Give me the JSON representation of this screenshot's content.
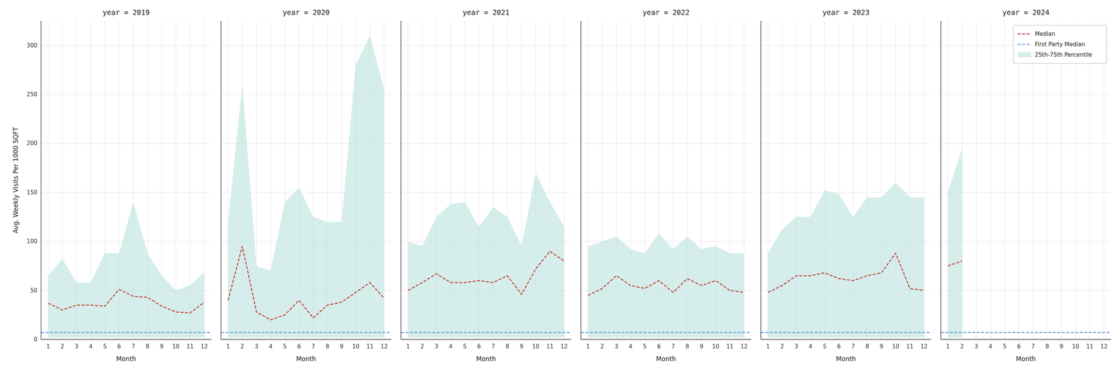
{
  "chart_data": [
    {
      "type": "line",
      "title": "year = 2019",
      "xlabel": "Month",
      "ylabel": "Avg. Weekly Visits Per 1000 SQFT",
      "x": [
        1,
        2,
        3,
        4,
        5,
        6,
        7,
        8,
        9,
        10,
        11,
        12
      ],
      "xlim": [
        0.5,
        12.5
      ],
      "xticks": [
        1,
        2,
        3,
        4,
        5,
        6,
        7,
        8,
        9,
        10,
        11,
        12
      ],
      "ylim": [
        0,
        325
      ],
      "yticks": [
        0,
        50,
        100,
        150,
        200,
        250,
        300
      ],
      "grid": true,
      "series": [
        {
          "name": "Median",
          "type": "line",
          "color": "#c0392b",
          "line_style": "dashed",
          "values": [
            37,
            30,
            35,
            35,
            34,
            51,
            44,
            43,
            34,
            28,
            27,
            38
          ]
        },
        {
          "name": "First Party Median",
          "type": "hline",
          "color": "#5b9bd5",
          "line_style": "dashed",
          "value": 7
        },
        {
          "name": "25th-75th Percentile",
          "type": "band",
          "color": "#b2dfdb",
          "lower": [
            2,
            2,
            2,
            2,
            2,
            2,
            2,
            2,
            2,
            2,
            2,
            2
          ],
          "upper": [
            65,
            82,
            58,
            58,
            88,
            88,
            140,
            88,
            65,
            50,
            55,
            68
          ]
        }
      ]
    },
    {
      "type": "line",
      "title": "year = 2020",
      "xlabel": "Month",
      "x": [
        1,
        2,
        3,
        4,
        5,
        6,
        7,
        8,
        9,
        10,
        11,
        12
      ],
      "xlim": [
        0.5,
        12.5
      ],
      "xticks": [
        1,
        2,
        3,
        4,
        5,
        6,
        7,
        8,
        9,
        10,
        11,
        12
      ],
      "ylim": [
        0,
        325
      ],
      "yticks": [
        0,
        50,
        100,
        150,
        200,
        250,
        300
      ],
      "grid": true,
      "tick_labels": "x",
      "series": [
        {
          "name": "Median",
          "type": "line",
          "color": "#c0392b",
          "line_style": "dashed",
          "values": [
            40,
            95,
            28,
            20,
            25,
            40,
            22,
            35,
            38,
            48,
            58,
            42
          ]
        },
        {
          "name": "First Party Median",
          "type": "hline",
          "color": "#5b9bd5",
          "line_style": "dashed",
          "value": 7
        },
        {
          "name": "25th-75th Percentile",
          "type": "band",
          "color": "#b2dfdb",
          "lower": [
            2,
            2,
            2,
            2,
            2,
            2,
            2,
            2,
            2,
            2,
            2,
            2
          ],
          "upper": [
            120,
            260,
            75,
            70,
            140,
            155,
            125,
            120,
            120,
            280,
            310,
            255
          ]
        }
      ]
    },
    {
      "type": "line",
      "title": "year = 2021",
      "xlabel": "Month",
      "x": [
        1,
        2,
        3,
        4,
        5,
        6,
        7,
        8,
        9,
        10,
        11,
        12
      ],
      "xlim": [
        0.5,
        12.5
      ],
      "xticks": [
        1,
        2,
        3,
        4,
        5,
        6,
        7,
        8,
        9,
        10,
        11,
        12
      ],
      "ylim": [
        0,
        325
      ],
      "yticks": [
        0,
        50,
        100,
        150,
        200,
        250,
        300
      ],
      "grid": true,
      "tick_labels": "x",
      "series": [
        {
          "name": "Median",
          "type": "line",
          "color": "#c0392b",
          "line_style": "dashed",
          "values": [
            50,
            58,
            67,
            58,
            58,
            60,
            58,
            65,
            46,
            72,
            90,
            80
          ]
        },
        {
          "name": "First Party Median",
          "type": "hline",
          "color": "#5b9bd5",
          "line_style": "dashed",
          "value": 7
        },
        {
          "name": "25th-75th Percentile",
          "type": "band",
          "color": "#b2dfdb",
          "lower": [
            2,
            2,
            2,
            2,
            2,
            2,
            2,
            2,
            2,
            2,
            2,
            2
          ],
          "upper": [
            100,
            95,
            125,
            138,
            140,
            115,
            135,
            125,
            95,
            170,
            140,
            115
          ]
        }
      ]
    },
    {
      "type": "line",
      "title": "year = 2022",
      "xlabel": "Month",
      "x": [
        1,
        2,
        3,
        4,
        5,
        6,
        7,
        8,
        9,
        10,
        11,
        12
      ],
      "xlim": [
        0.5,
        12.5
      ],
      "xticks": [
        1,
        2,
        3,
        4,
        5,
        6,
        7,
        8,
        9,
        10,
        11,
        12
      ],
      "ylim": [
        0,
        325
      ],
      "yticks": [
        0,
        50,
        100,
        150,
        200,
        250,
        300
      ],
      "grid": true,
      "tick_labels": "x",
      "series": [
        {
          "name": "Median",
          "type": "line",
          "color": "#c0392b",
          "line_style": "dashed",
          "values": [
            45,
            52,
            65,
            55,
            52,
            60,
            48,
            62,
            55,
            60,
            50,
            48
          ]
        },
        {
          "name": "First Party Median",
          "type": "hline",
          "color": "#5b9bd5",
          "line_style": "dashed",
          "value": 7
        },
        {
          "name": "25th-75th Percentile",
          "type": "band",
          "color": "#b2dfdb",
          "lower": [
            2,
            2,
            2,
            2,
            2,
            2,
            2,
            2,
            2,
            2,
            2,
            2
          ],
          "upper": [
            95,
            100,
            105,
            92,
            88,
            108,
            92,
            105,
            92,
            95,
            88,
            88
          ]
        }
      ]
    },
    {
      "type": "line",
      "title": "year = 2023",
      "xlabel": "Month",
      "x": [
        1,
        2,
        3,
        4,
        5,
        6,
        7,
        8,
        9,
        10,
        11,
        12
      ],
      "xlim": [
        0.5,
        12.5
      ],
      "xticks": [
        1,
        2,
        3,
        4,
        5,
        6,
        7,
        8,
        9,
        10,
        11,
        12
      ],
      "ylim": [
        0,
        325
      ],
      "yticks": [
        0,
        50,
        100,
        150,
        200,
        250,
        300
      ],
      "grid": true,
      "tick_labels": "x",
      "series": [
        {
          "name": "Median",
          "type": "line",
          "color": "#c0392b",
          "line_style": "dashed",
          "values": [
            48,
            55,
            65,
            65,
            68,
            62,
            60,
            65,
            68,
            88,
            52,
            50
          ]
        },
        {
          "name": "First Party Median",
          "type": "hline",
          "color": "#5b9bd5",
          "line_style": "dashed",
          "value": 7
        },
        {
          "name": "25th-75th Percentile",
          "type": "band",
          "color": "#b2dfdb",
          "lower": [
            2,
            2,
            2,
            2,
            2,
            2,
            2,
            2,
            2,
            2,
            2,
            2
          ],
          "upper": [
            88,
            112,
            125,
            125,
            152,
            148,
            125,
            145,
            145,
            160,
            145,
            145
          ]
        }
      ]
    },
    {
      "type": "line",
      "title": "year = 2024",
      "xlabel": "Month",
      "x": [
        1,
        2,
        3,
        4,
        5,
        6,
        7,
        8,
        9,
        10,
        11,
        12
      ],
      "xlim": [
        0.5,
        12.5
      ],
      "xticks": [
        1,
        2,
        3,
        4,
        5,
        6,
        7,
        8,
        9,
        10,
        11,
        12
      ],
      "ylim": [
        0,
        325
      ],
      "yticks": [
        0,
        50,
        100,
        150,
        200,
        250,
        300
      ],
      "grid": true,
      "tick_labels": "x",
      "legend": "upper right",
      "series": [
        {
          "name": "Median",
          "type": "line",
          "color": "#c0392b",
          "line_style": "dashed",
          "values": [
            75,
            80,
            null,
            null,
            null,
            null,
            null,
            null,
            null,
            null,
            null,
            null
          ]
        },
        {
          "name": "First Party Median",
          "type": "hline",
          "color": "#5b9bd5",
          "line_style": "dashed",
          "value": 7
        },
        {
          "name": "25th-75th Percentile",
          "type": "band",
          "color": "#b2dfdb",
          "lower": [
            2,
            2,
            null,
            null,
            null,
            null,
            null,
            null,
            null,
            null,
            null,
            null
          ],
          "upper": [
            150,
            195,
            null,
            null,
            null,
            null,
            null,
            null,
            null,
            null,
            null,
            null
          ]
        }
      ]
    }
  ]
}
